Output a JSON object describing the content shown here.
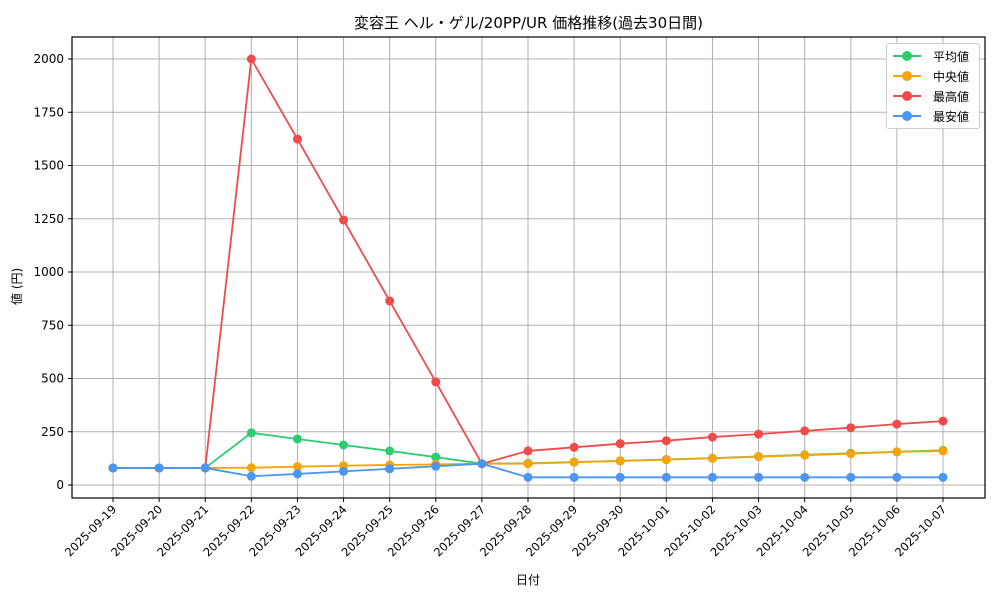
{
  "chart_data": {
    "type": "line",
    "title": "変容王 ヘル・ゲル/20PP/UR 価格推移(過去30日間)",
    "xlabel": "日付",
    "ylabel": "値 (円)",
    "ylim": [
      -60,
      2100
    ],
    "yticks": [
      0,
      250,
      500,
      750,
      1000,
      1250,
      1500,
      1750,
      2000
    ],
    "grid": true,
    "legend_position": "upper right",
    "x": [
      "2025-09-19",
      "2025-09-20",
      "2025-09-21",
      "2025-09-22",
      "2025-09-23",
      "2025-09-24",
      "2025-09-25",
      "2025-09-26",
      "2025-09-27",
      "2025-09-28",
      "2025-09-29",
      "2025-09-30",
      "2025-10-01",
      "2025-10-02",
      "2025-10-03",
      "2025-10-04",
      "2025-10-05",
      "2025-10-06",
      "2025-10-07"
    ],
    "series": [
      {
        "name": "平均値",
        "color": "#2ecc71",
        "values": [
          80,
          80,
          80,
          245,
          216,
          188,
          160,
          131,
          100,
          102,
          108,
          113,
          120,
          126,
          134,
          142,
          149,
          156,
          163
        ]
      },
      {
        "name": "中央値",
        "color": "#f39c12",
        "values": [
          80,
          80,
          80,
          81,
          86,
          91,
          94,
          97,
          100,
          100,
          107,
          113,
          119,
          125,
          133,
          140,
          147,
          155,
          160
        ]
      },
      {
        "name": "最高値",
        "color": "#ef4b4b",
        "values": [
          80,
          80,
          80,
          2000,
          1624,
          1244,
          864,
          484,
          100,
          160,
          177,
          194,
          208,
          225,
          239,
          254,
          269,
          286,
          300
        ]
      },
      {
        "name": "最安値",
        "color": "#4a96f0",
        "values": [
          80,
          80,
          80,
          41,
          52,
          64,
          76,
          88,
          100,
          36,
          36,
          36,
          36,
          36,
          36,
          36,
          36,
          36,
          36
        ]
      }
    ]
  }
}
